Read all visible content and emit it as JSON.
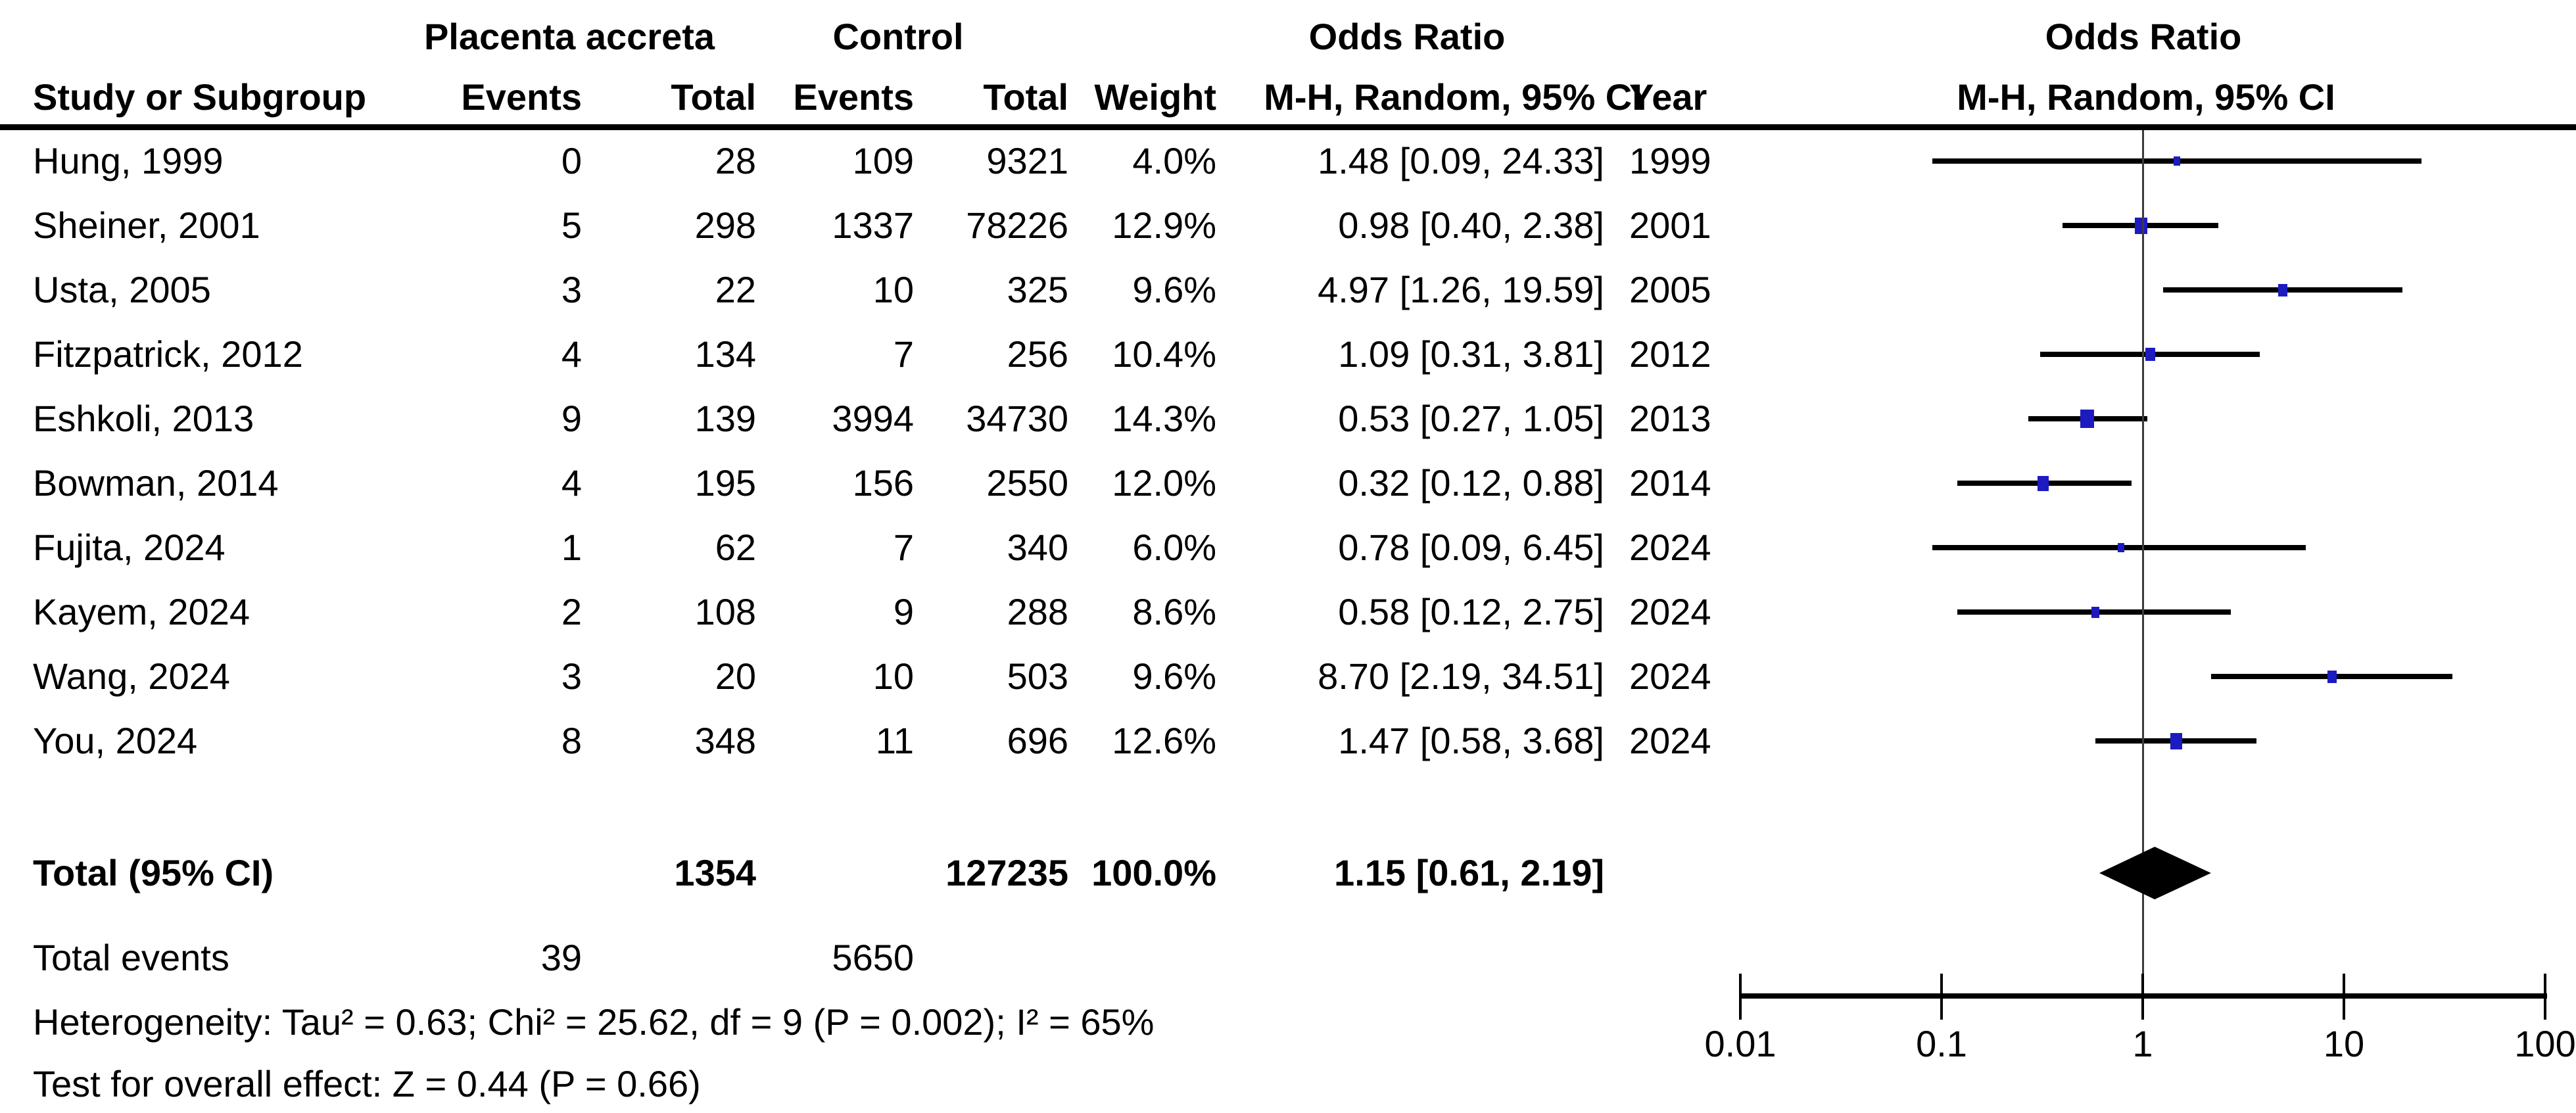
{
  "table": {
    "headers": {
      "group1": "Placenta accreta",
      "group2": "Control",
      "odds_ratio_left": "Odds Ratio",
      "odds_ratio_right": "Odds Ratio",
      "study": "Study or Subgroup",
      "events1": "Events",
      "total1": "Total",
      "events2": "Events",
      "total2": "Total",
      "weight": "Weight",
      "mh_ci_left": "M-H, Random, 95% CI",
      "mh_ci_right": "M-H, Random, 95% CI",
      "year": "Year"
    },
    "studies": [
      {
        "name": "Hung, 1999",
        "events1": "0",
        "total1": "28",
        "events2": "109",
        "total2": "9321",
        "weight": "4.0%",
        "weight_pct": 4.0,
        "ci_text": "1.48 [0.09, 24.33]",
        "year": "1999",
        "or": 1.48,
        "or_low": 0.09,
        "or_high": 24.33
      },
      {
        "name": "Sheiner, 2001",
        "events1": "5",
        "total1": "298",
        "events2": "1337",
        "total2": "78226",
        "weight": "12.9%",
        "weight_pct": 12.9,
        "ci_text": "0.98 [0.40, 2.38]",
        "year": "2001",
        "or": 0.98,
        "or_low": 0.4,
        "or_high": 2.38
      },
      {
        "name": "Usta, 2005",
        "events1": "3",
        "total1": "22",
        "events2": "10",
        "total2": "325",
        "weight": "9.6%",
        "weight_pct": 9.6,
        "ci_text": "4.97 [1.26, 19.59]",
        "year": "2005",
        "or": 4.97,
        "or_low": 1.26,
        "or_high": 19.59
      },
      {
        "name": "Fitzpatrick, 2012",
        "events1": "4",
        "total1": "134",
        "events2": "7",
        "total2": "256",
        "weight": "10.4%",
        "weight_pct": 10.4,
        "ci_text": "1.09 [0.31, 3.81]",
        "year": "2012",
        "or": 1.09,
        "or_low": 0.31,
        "or_high": 3.81
      },
      {
        "name": "Eshkoli, 2013",
        "events1": "9",
        "total1": "139",
        "events2": "3994",
        "total2": "34730",
        "weight": "14.3%",
        "weight_pct": 14.3,
        "ci_text": "0.53 [0.27, 1.05]",
        "year": "2013",
        "or": 0.53,
        "or_low": 0.27,
        "or_high": 1.05
      },
      {
        "name": "Bowman, 2014",
        "events1": "4",
        "total1": "195",
        "events2": "156",
        "total2": "2550",
        "weight": "12.0%",
        "weight_pct": 12.0,
        "ci_text": "0.32 [0.12, 0.88]",
        "year": "2014",
        "or": 0.32,
        "or_low": 0.12,
        "or_high": 0.88
      },
      {
        "name": "Fujita, 2024",
        "events1": "1",
        "total1": "62",
        "events2": "7",
        "total2": "340",
        "weight": "6.0%",
        "weight_pct": 6.0,
        "ci_text": "0.78 [0.09, 6.45]",
        "year": "2024",
        "or": 0.78,
        "or_low": 0.09,
        "or_high": 6.45
      },
      {
        "name": "Kayem, 2024",
        "events1": "2",
        "total1": "108",
        "events2": "9",
        "total2": "288",
        "weight": "8.6%",
        "weight_pct": 8.6,
        "ci_text": "0.58 [0.12, 2.75]",
        "year": "2024",
        "or": 0.58,
        "or_low": 0.12,
        "or_high": 2.75
      },
      {
        "name": "Wang, 2024",
        "events1": "3",
        "total1": "20",
        "events2": "10",
        "total2": "503",
        "weight": "9.6%",
        "weight_pct": 9.6,
        "ci_text": "8.70 [2.19, 34.51]",
        "year": "2024",
        "or": 8.7,
        "or_low": 2.19,
        "or_high": 34.51
      },
      {
        "name": "You, 2024",
        "events1": "8",
        "total1": "348",
        "events2": "11",
        "total2": "696",
        "weight": "12.6%",
        "weight_pct": 12.6,
        "ci_text": "1.47 [0.58, 3.68]",
        "year": "2024",
        "or": 1.47,
        "or_low": 0.58,
        "or_high": 3.68
      }
    ],
    "total_row": {
      "label": "Total (95% CI)",
      "total1": "1354",
      "total2": "127235",
      "weight": "100.0%",
      "ci_text": "1.15 [0.61, 2.19]",
      "or": 1.15,
      "or_low": 0.61,
      "or_high": 2.19
    },
    "total_events_row": {
      "label": "Total events",
      "events1": "39",
      "events2": "5650"
    },
    "heterogeneity": "Heterogeneity: Tau² = 0.63; Chi² = 25.62, df = 9 (P = 0.002); I² = 65%",
    "overall_effect": "Test for overall effect: Z = 0.44 (P = 0.66)"
  },
  "plot": {
    "scale": "log10",
    "reference_value": 1,
    "axis_ticks": [
      {
        "label": "0.01",
        "value": 0.01
      },
      {
        "label": "0.1",
        "value": 0.1
      },
      {
        "label": "1",
        "value": 1
      },
      {
        "label": "10",
        "value": 10
      },
      {
        "label": "100",
        "value": 100
      }
    ],
    "colors": {
      "ci_line": "#000000",
      "square": "#1b1bc0",
      "diamond": "#000000",
      "reference_line": "#3c3c3c",
      "axis": "#000000",
      "header_rule": "#000000"
    }
  },
  "chart_data": {
    "type": "scatter",
    "variant": "forest-plot",
    "effect_measure": "Odds Ratio, M-H, Random, 95% CI",
    "x_scale": "log10",
    "x_ticks": [
      0.01,
      0.1,
      1,
      10,
      100
    ],
    "reference_line": 1,
    "studies": [
      {
        "name": "Hung, 1999",
        "or": 1.48,
        "ci": [
          0.09,
          24.33
        ],
        "weight_pct": 4.0,
        "year": 1999
      },
      {
        "name": "Sheiner, 2001",
        "or": 0.98,
        "ci": [
          0.4,
          2.38
        ],
        "weight_pct": 12.9,
        "year": 2001
      },
      {
        "name": "Usta, 2005",
        "or": 4.97,
        "ci": [
          1.26,
          19.59
        ],
        "weight_pct": 9.6,
        "year": 2005
      },
      {
        "name": "Fitzpatrick, 2012",
        "or": 1.09,
        "ci": [
          0.31,
          3.81
        ],
        "weight_pct": 10.4,
        "year": 2012
      },
      {
        "name": "Eshkoli, 2013",
        "or": 0.53,
        "ci": [
          0.27,
          1.05
        ],
        "weight_pct": 14.3,
        "year": 2013
      },
      {
        "name": "Bowman, 2014",
        "or": 0.32,
        "ci": [
          0.12,
          0.88
        ],
        "weight_pct": 12.0,
        "year": 2014
      },
      {
        "name": "Fujita, 2024",
        "or": 0.78,
        "ci": [
          0.09,
          6.45
        ],
        "weight_pct": 6.0,
        "year": 2024
      },
      {
        "name": "Kayem, 2024",
        "or": 0.58,
        "ci": [
          0.12,
          2.75
        ],
        "weight_pct": 8.6,
        "year": 2024
      },
      {
        "name": "Wang, 2024",
        "or": 8.7,
        "ci": [
          2.19,
          34.51
        ],
        "weight_pct": 9.6,
        "year": 2024
      },
      {
        "name": "You, 2024",
        "or": 1.47,
        "ci": [
          0.58,
          3.68
        ],
        "weight_pct": 12.6,
        "year": 2024
      }
    ],
    "total": {
      "label": "Total (95% CI)",
      "or": 1.15,
      "ci": [
        0.61,
        2.19
      ],
      "events_exp": 39,
      "total_exp": 1354,
      "events_ctrl": 5650,
      "total_ctrl": 127235,
      "weight_pct": 100.0
    },
    "heterogeneity": {
      "tau2": 0.63,
      "chi2": 25.62,
      "df": 9,
      "p": 0.002,
      "i2_pct": 65
    },
    "overall_effect": {
      "z": 0.44,
      "p": 0.66
    }
  }
}
